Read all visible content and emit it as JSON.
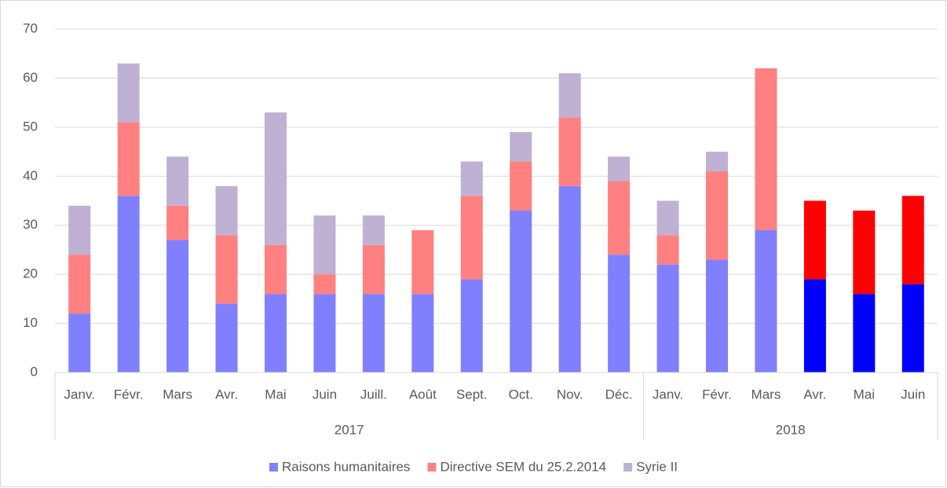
{
  "chart_data": {
    "type": "stacked-bar",
    "categories": [
      "Janv.",
      "Févr.",
      "Mars",
      "Avr.",
      "Mai",
      "Juin",
      "Juill.",
      "Août",
      "Sept.",
      "Oct.",
      "Nov.",
      "Déc.",
      "Janv.",
      "Févr.",
      "Mars",
      "Avr.",
      "Mai",
      "Juin"
    ],
    "groups": [
      {
        "name": "2017",
        "span": 12
      },
      {
        "name": "2018",
        "span": 6
      }
    ],
    "series": [
      {
        "name": "Raisons humanitaires",
        "color": "#8080ff",
        "point_colors": [
          "#8080ff",
          "#8080ff",
          "#8080ff",
          "#8080ff",
          "#8080ff",
          "#8080ff",
          "#8080ff",
          "#8080ff",
          "#8080ff",
          "#8080ff",
          "#8080ff",
          "#8080ff",
          "#8080ff",
          "#8080ff",
          "#8080ff",
          "#0000ff",
          "#0000ff",
          "#0000ff"
        ],
        "values": [
          12,
          36,
          27,
          14,
          16,
          16,
          16,
          16,
          19,
          33,
          38,
          24,
          22,
          23,
          29,
          19,
          16,
          18
        ]
      },
      {
        "name": "Directive SEM du 25.2.2014",
        "color": "#ff8080",
        "point_colors": [
          "#ff8080",
          "#ff8080",
          "#ff8080",
          "#ff8080",
          "#ff8080",
          "#ff8080",
          "#ff8080",
          "#ff8080",
          "#ff8080",
          "#ff8080",
          "#ff8080",
          "#ff8080",
          "#ff8080",
          "#ff8080",
          "#ff8080",
          "#ff0000",
          "#ff0000",
          "#ff0000"
        ],
        "values": [
          12,
          15,
          7,
          14,
          10,
          4,
          10,
          13,
          17,
          10,
          14,
          15,
          6,
          18,
          33,
          16,
          17,
          18
        ]
      },
      {
        "name": "Syrie II",
        "color": "#bfb1d3",
        "values": [
          10,
          12,
          10,
          10,
          27,
          12,
          6,
          0,
          7,
          6,
          9,
          5,
          7,
          4,
          0,
          0,
          0,
          0
        ]
      }
    ],
    "ylim": [
      0,
      70
    ],
    "yticks": [
      0,
      10,
      20,
      30,
      40,
      50,
      60,
      70
    ],
    "grid": true,
    "legend": "bottom"
  }
}
